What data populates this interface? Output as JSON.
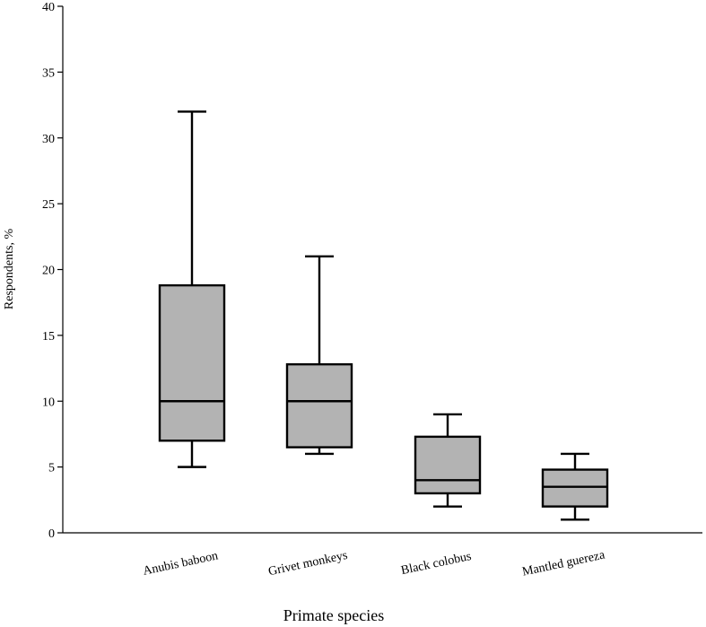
{
  "chart_data": {
    "type": "boxplot",
    "title": "",
    "xlabel": "Primate species",
    "ylabel": "Respondents, %",
    "ylim": [
      0,
      40
    ],
    "yticks": [
      0,
      5,
      10,
      15,
      20,
      25,
      30,
      35,
      40
    ],
    "grid": false,
    "categories": [
      "Anubis baboon",
      "Grivet monkeys",
      "Black colobus",
      "Mantled guereza"
    ],
    "boxes": [
      {
        "name": "Anubis baboon",
        "min": 5,
        "q1": 7,
        "median": 10,
        "q3": 18.8,
        "max": 32
      },
      {
        "name": "Grivet monkeys",
        "min": 6,
        "q1": 6.5,
        "median": 10,
        "q3": 12.8,
        "max": 21
      },
      {
        "name": "Black colobus",
        "min": 2,
        "q1": 3,
        "median": 4,
        "q3": 7.3,
        "max": 9
      },
      {
        "name": "Mantled guereza",
        "min": 1,
        "q1": 2,
        "median": 3.5,
        "q3": 4.8,
        "max": 6
      }
    ],
    "colors": {
      "box_fill": "#b3b3b3",
      "stroke": "#000000"
    }
  }
}
